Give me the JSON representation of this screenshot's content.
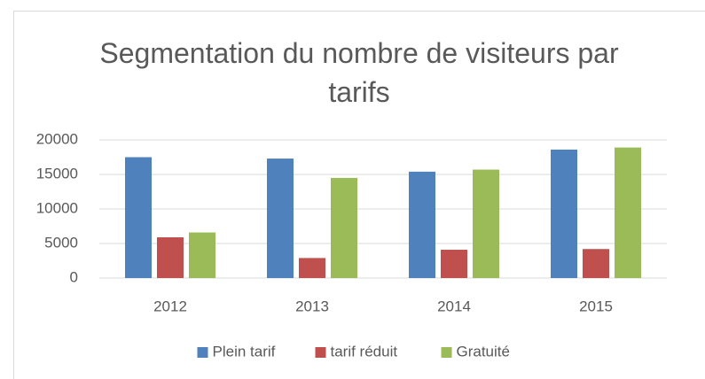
{
  "chart_data": {
    "type": "bar",
    "title": "Segmentation du nombre de visiteurs par tarifs",
    "categories": [
      "2012",
      "2013",
      "2014",
      "2015"
    ],
    "series": [
      {
        "name": "Plein tarif",
        "color": "#4f81bd",
        "values": [
          17500,
          17300,
          15400,
          18600
        ]
      },
      {
        "name": "tarif réduit",
        "color": "#c0504d",
        "values": [
          5900,
          2900,
          4100,
          4200
        ]
      },
      {
        "name": "Gratuité",
        "color": "#9bbb59",
        "values": [
          6600,
          14500,
          15700,
          18900
        ]
      }
    ],
    "ylim": [
      0,
      20000
    ],
    "yticks": [
      0,
      5000,
      10000,
      15000,
      20000
    ],
    "grid": true,
    "legend": "bottom"
  }
}
